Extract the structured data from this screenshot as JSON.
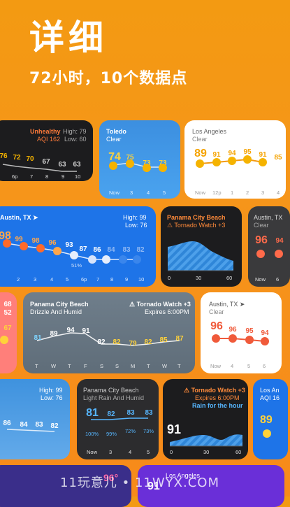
{
  "hero": {
    "title": "详细",
    "subtitle": "72小时，10个数据点"
  },
  "c1": {
    "status": "Unhealthy",
    "aqi": "AQI 162",
    "high": "High: 79",
    "low": "Low: 60",
    "temps": [
      "76",
      "72",
      "70",
      "67",
      "63",
      "63"
    ],
    "ticks": [
      "6p",
      "7",
      "8",
      "9",
      "10"
    ]
  },
  "c2": {
    "city": "Toledo",
    "cond": "Clear",
    "temps": [
      "74",
      "75",
      "73",
      "73"
    ],
    "ticks": [
      "Now",
      "3",
      "4",
      "5"
    ]
  },
  "c3": {
    "city": "Los Angeles",
    "cond": "Clear",
    "temps": [
      "89",
      "91",
      "94",
      "95",
      "91",
      "85"
    ],
    "ticks": [
      "Now",
      "12p",
      "1",
      "2",
      "3",
      "4"
    ]
  },
  "c4": {
    "city": "Austin, TX",
    "high": "High: 99",
    "low": "Low: 76",
    "temps": [
      "98",
      "99",
      "98",
      "96",
      "93",
      "87",
      "86",
      "84",
      "83",
      "82"
    ],
    "precip": "51%",
    "ticks": [
      "2",
      "3",
      "4",
      "5",
      "6p",
      "7",
      "8",
      "9",
      "10"
    ]
  },
  "c5": {
    "city": "Panama City Beach",
    "alert": "Tornado Watch +3",
    "ticks": [
      "0",
      "30",
      "60"
    ]
  },
  "c6": {
    "city": "Austin, TX",
    "cond": "Clear",
    "temps": [
      "96",
      "94"
    ],
    "ticks": [
      "Now",
      "6"
    ]
  },
  "c7": {
    "temps": [
      "68",
      "52",
      "67"
    ]
  },
  "c8": {
    "city": "Panama City Beach",
    "cond": "Drizzle And Humid",
    "alert": "Tornado Watch +3",
    "expires": "Expires 6:00PM",
    "temps": [
      "81",
      "89",
      "94",
      "91",
      "82",
      "82",
      "79",
      "82",
      "85",
      "87"
    ],
    "ticks": [
      "T",
      "W",
      "T",
      "F",
      "S",
      "S",
      "M",
      "T",
      "W",
      "T"
    ]
  },
  "c9": {
    "city": "Austin, TX",
    "cond": "Clear",
    "temps": [
      "96",
      "96",
      "95",
      "94"
    ],
    "ticks": [
      "Now",
      "4",
      "5",
      "6"
    ]
  },
  "c10": {
    "high": "High: 99",
    "low": "Low: 76",
    "temps": [
      "86",
      "84",
      "83",
      "82"
    ]
  },
  "c11": {
    "city": "Panama City Beach",
    "cond": "Light Rain And Humid",
    "temps": [
      "81",
      "82",
      "83",
      "83"
    ],
    "precip": [
      "100%",
      "99%",
      "72%",
      "73%"
    ],
    "ticks": [
      "Now",
      "3",
      "4",
      "5"
    ]
  },
  "c12": {
    "alert": "Tornado Watch +3",
    "expires": "Expires 6:00PM",
    "rain": "Rain for the hour",
    "temp": "91",
    "ticks": [
      "0",
      "30",
      "60"
    ]
  },
  "c13": {
    "city": "Los An",
    "aqi": "AQI 16",
    "temp": "89"
  },
  "c14": {
    "temp": "96°"
  },
  "c15": {
    "city": "Los Angeles",
    "temp": "91"
  },
  "watermark": "11玩意儿 • 11WYX.COM",
  "colors": {
    "orange": "#f39a12",
    "blue": "#1e74e8",
    "dark": "#2a2a2c",
    "alert": "#ff6a2a",
    "sun": "#f5b300"
  }
}
